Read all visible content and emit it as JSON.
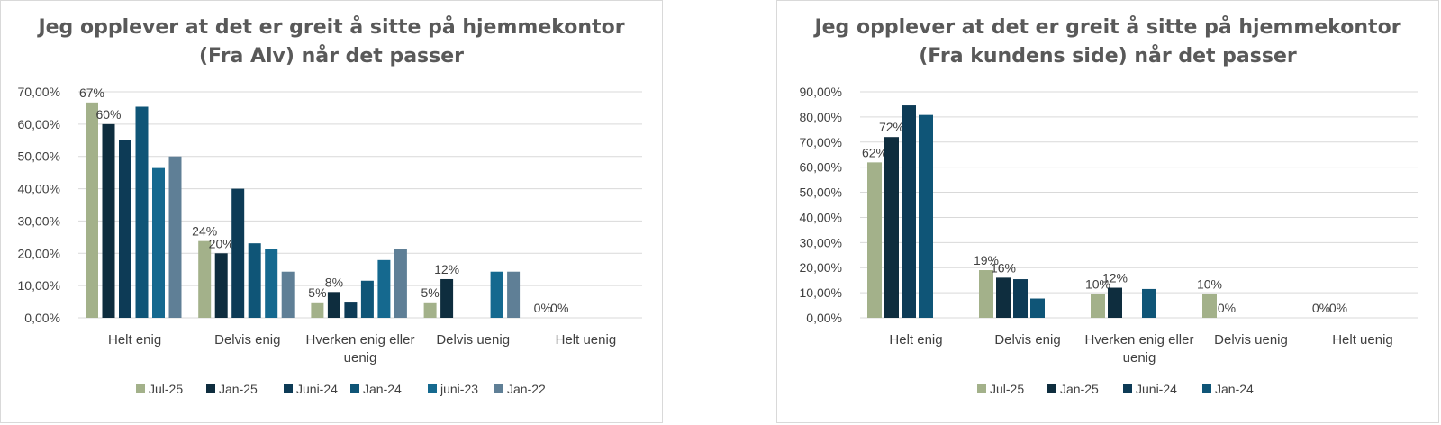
{
  "colors": {
    "jul25": "#a3b18a",
    "jan25": "#0e2d3e",
    "juni24": "#0d3b56",
    "jan24": "#0f5577",
    "juni23": "#15698f",
    "jan22": "#5f7f96",
    "grid": "#d9d9d9",
    "text": "#404040",
    "title": "#595959"
  },
  "chart_data": [
    {
      "type": "bar",
      "title": "Jeg opplever at det er greit å sitte på hjemmekontor\n(Fra Alv) når det passer",
      "categories": [
        "Helt enig",
        "Delvis enig",
        "Hverken enig eller uenig",
        "Delvis uenig",
        "Helt uenig"
      ],
      "category_lines": [
        [
          "Helt enig"
        ],
        [
          "Delvis enig"
        ],
        [
          "Hverken enig eller",
          "uenig"
        ],
        [
          "Delvis uenig"
        ],
        [
          "Helt uenig"
        ]
      ],
      "ylim": [
        0,
        0.7
      ],
      "yticks": [
        {
          "value": 0,
          "label": "0,00%"
        },
        {
          "value": 0.1,
          "label": "10,00%"
        },
        {
          "value": 0.2,
          "label": "20,00%"
        },
        {
          "value": 0.3,
          "label": "30,00%"
        },
        {
          "value": 0.4,
          "label": "40,00%"
        },
        {
          "value": 0.5,
          "label": "50,00%"
        },
        {
          "value": 0.6,
          "label": "60,00%"
        },
        {
          "value": 0.7,
          "label": "70,00%"
        }
      ],
      "grid": true,
      "legend_position": "bottom",
      "series": [
        {
          "name": "Jul-25",
          "color_key": "jul25",
          "values": [
            0.667,
            0.238,
            0.048,
            0.048,
            0
          ],
          "labels": [
            "67%",
            "24%",
            "5%",
            "5%",
            "0%"
          ]
        },
        {
          "name": "Jan-25",
          "color_key": "jan25",
          "values": [
            0.6,
            0.2,
            0.08,
            0.12,
            0
          ],
          "labels": [
            "60%",
            "20%",
            "8%",
            "12%",
            "0%"
          ]
        },
        {
          "name": "Juni-24",
          "color_key": "juni24",
          "values": [
            0.55,
            0.4,
            0.05,
            0,
            0
          ],
          "labels": [
            "",
            "",
            "",
            "",
            ""
          ]
        },
        {
          "name": "Jan-24",
          "color_key": "jan24",
          "values": [
            0.654,
            0.231,
            0.115,
            0,
            0
          ],
          "labels": [
            "",
            "",
            "",
            "",
            ""
          ]
        },
        {
          "name": "juni-23",
          "color_key": "juni23",
          "values": [
            0.464,
            0.214,
            0.179,
            0.143,
            0
          ],
          "labels": [
            "",
            "",
            "",
            "",
            ""
          ]
        },
        {
          "name": "Jan-22",
          "color_key": "jan22",
          "values": [
            0.5,
            0.143,
            0.214,
            0.143,
            0
          ],
          "labels": [
            "",
            "",
            "",
            "",
            ""
          ]
        }
      ]
    },
    {
      "type": "bar",
      "title": "Jeg opplever at det er greit å sitte på hjemmekontor\n(Fra kundens side) når det passer",
      "categories": [
        "Helt enig",
        "Delvis enig",
        "Hverken enig eller uenig",
        "Delvis uenig",
        "Helt uenig"
      ],
      "category_lines": [
        [
          "Helt enig"
        ],
        [
          "Delvis enig"
        ],
        [
          "Hverken enig eller",
          "uenig"
        ],
        [
          "Delvis uenig"
        ],
        [
          "Helt uenig"
        ]
      ],
      "ylim": [
        0,
        0.9
      ],
      "yticks": [
        {
          "value": 0,
          "label": "0,00%"
        },
        {
          "value": 0.1,
          "label": "10,00%"
        },
        {
          "value": 0.2,
          "label": "20,00%"
        },
        {
          "value": 0.3,
          "label": "30,00%"
        },
        {
          "value": 0.4,
          "label": "40,00%"
        },
        {
          "value": 0.5,
          "label": "50,00%"
        },
        {
          "value": 0.6,
          "label": "60,00%"
        },
        {
          "value": 0.7,
          "label": "70,00%"
        },
        {
          "value": 0.8,
          "label": "80,00%"
        },
        {
          "value": 0.9,
          "label": "90,00%"
        }
      ],
      "grid": true,
      "legend_position": "bottom",
      "series": [
        {
          "name": "Jul-25",
          "color_key": "jul25",
          "values": [
            0.619,
            0.19,
            0.095,
            0.095,
            0
          ],
          "labels": [
            "62%",
            "19%",
            "10%",
            "10%",
            "0%"
          ]
        },
        {
          "name": "Jan-25",
          "color_key": "jan25",
          "values": [
            0.72,
            0.16,
            0.12,
            0,
            0
          ],
          "labels": [
            "72%",
            "16%",
            "12%",
            "0%",
            "0%"
          ]
        },
        {
          "name": "Juni-24",
          "color_key": "juni24",
          "values": [
            0.846,
            0.154,
            0,
            0,
            0
          ],
          "labels": [
            "",
            "",
            "",
            "",
            ""
          ]
        },
        {
          "name": "Jan-24",
          "color_key": "jan24",
          "values": [
            0.808,
            0.077,
            0.115,
            0,
            0
          ],
          "labels": [
            "",
            "",
            "",
            "",
            ""
          ]
        }
      ]
    }
  ]
}
